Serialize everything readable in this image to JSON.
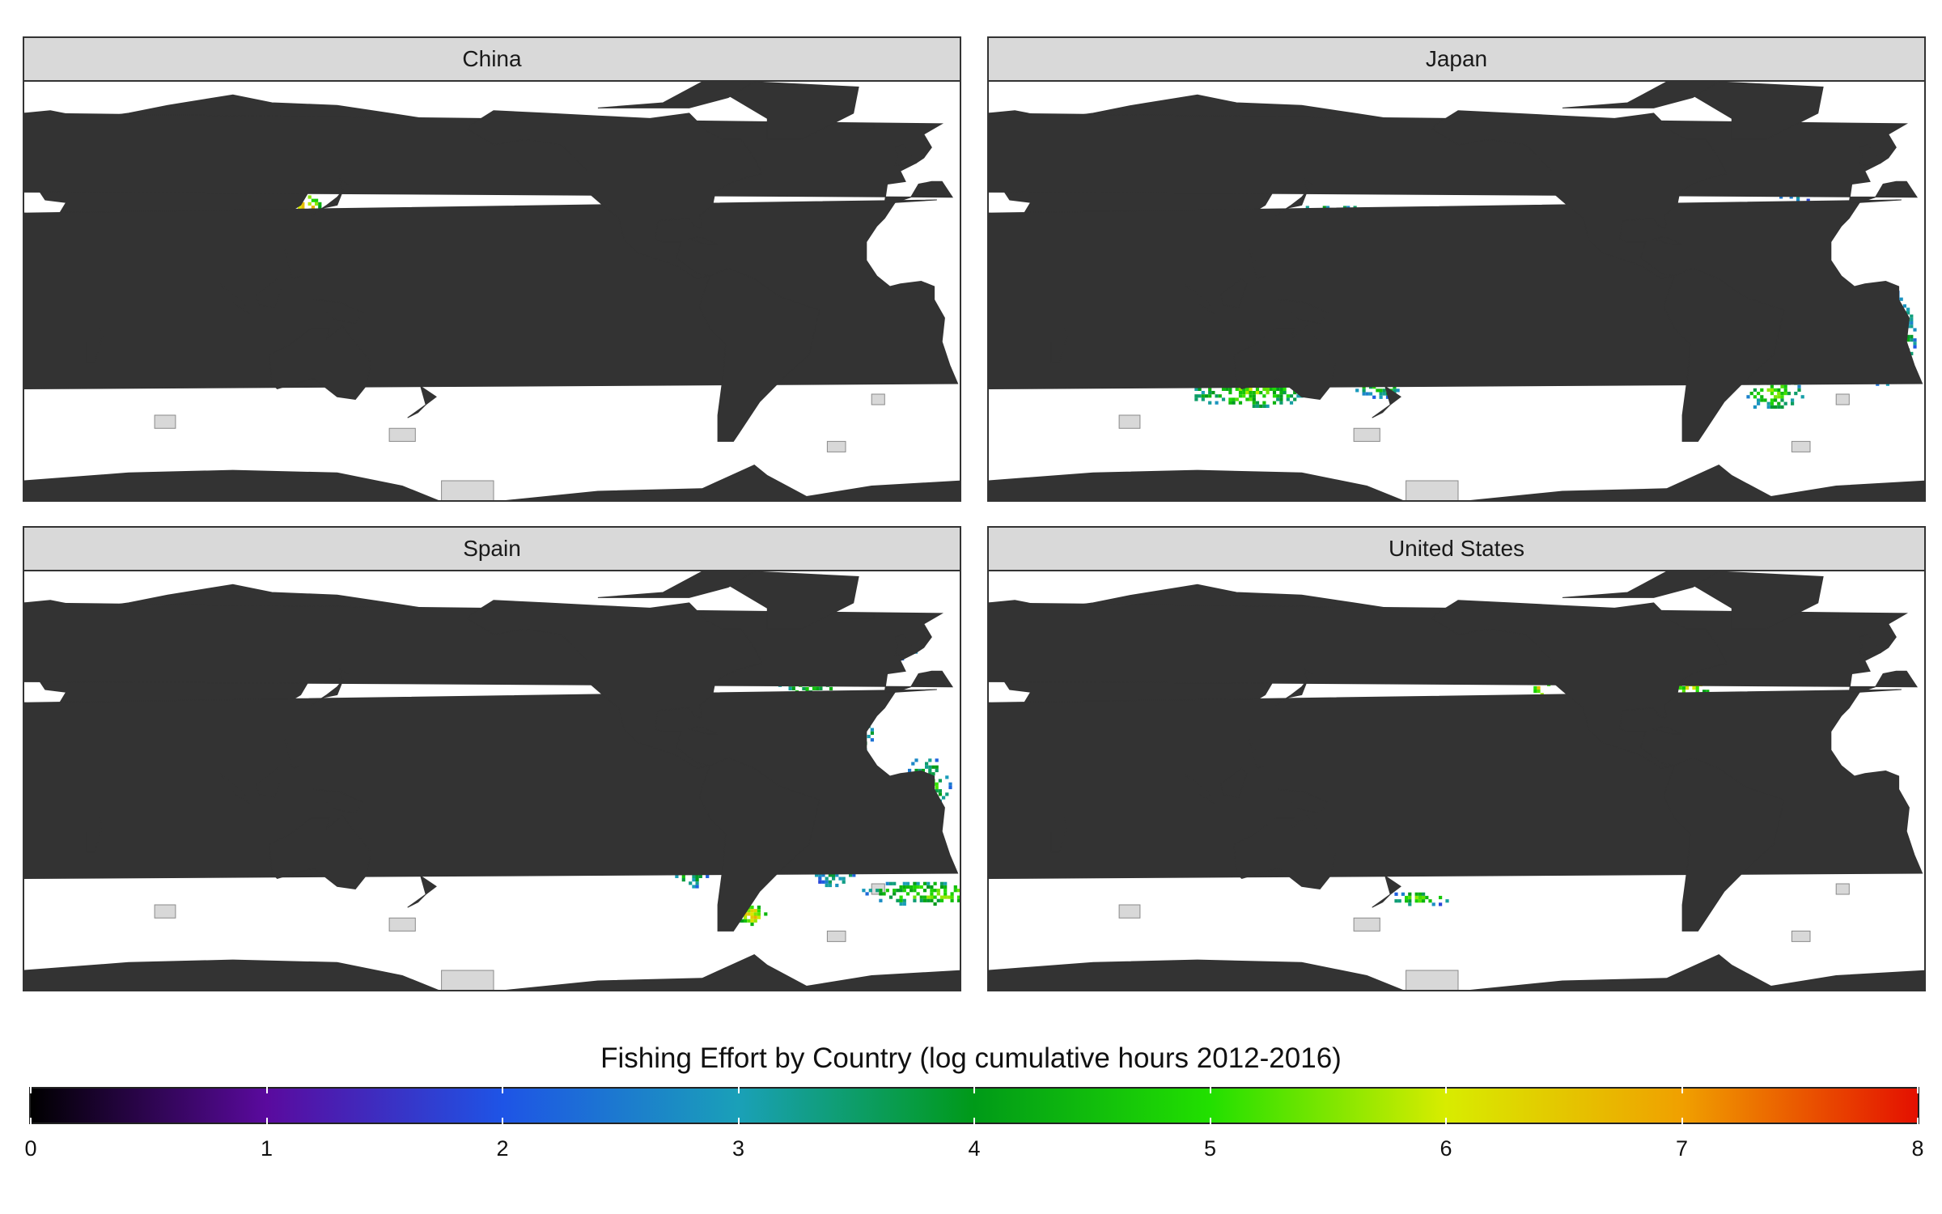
{
  "panels": [
    {
      "title": "China"
    },
    {
      "title": "Japan"
    },
    {
      "title": "Spain"
    },
    {
      "title": "United States"
    }
  ],
  "legend": {
    "title": "Fishing Effort by Country (log cumulative hours 2012-2016)",
    "ticks": [
      "0",
      "1",
      "2",
      "3",
      "4",
      "5",
      "6",
      "7",
      "8"
    ],
    "range": [
      0,
      8
    ],
    "colors": [
      "#000000",
      "#5a0a9e",
      "#1e54e6",
      "#1aa0b8",
      "#009a18",
      "#22e000",
      "#d8ec00",
      "#f0a000",
      "#e41000"
    ]
  },
  "colors": {
    "land": "#333333",
    "ocean": "#ffffff",
    "strip_fill": "#d9d9d9",
    "eez_outline": "#9aa8c0",
    "protected_area": "#d8d8d8"
  }
}
